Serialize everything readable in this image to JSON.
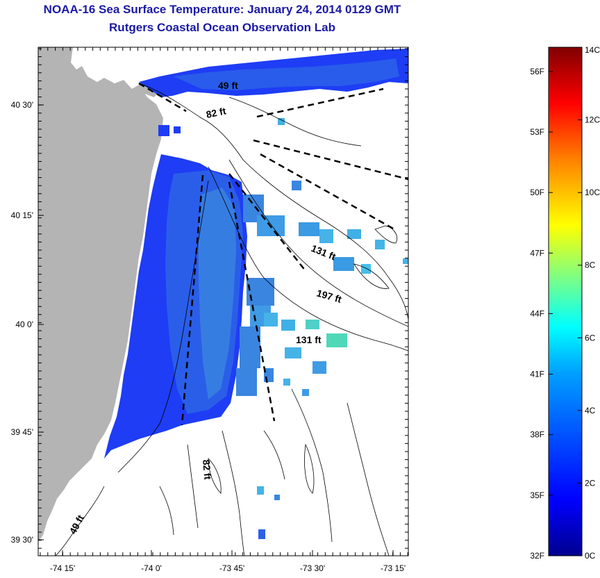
{
  "header": {
    "title": "NOAA-16 Sea Surface Temperature:  January 24, 2014 0129 GMT",
    "subtitle": "Rutgers Coastal Ocean Observation Lab"
  },
  "map": {
    "x_ticks": [
      "-74 15'",
      "-74 0'",
      "-73 45'",
      "-73 30'",
      "-73 15'"
    ],
    "y_ticks": [
      "40 30'",
      "40 15'",
      "40 0'",
      "39 45'",
      "39 30'"
    ],
    "depth_labels": [
      "49 ft",
      "82 ft",
      "131 ft",
      "197 ft",
      "131 ft",
      "82 ft",
      "49 ft"
    ],
    "colors": {
      "land": "#b4b4b4",
      "water_cold": "#1a3cff",
      "water_mid": "#2a6ae6"
    }
  },
  "colorbar": {
    "fahrenheit_labels": [
      "56F",
      "53F",
      "50F",
      "47F",
      "44F",
      "41F",
      "38F",
      "35F",
      "32F"
    ],
    "celsius_labels": [
      "14C",
      "12C",
      "10C",
      "8C",
      "6C",
      "4C",
      "2C",
      "0C"
    ],
    "range_c": [
      0,
      14
    ],
    "colors": [
      "#00008f",
      "#0000ff",
      "#0080ff",
      "#00ffff",
      "#80ff80",
      "#ffff00",
      "#ff8000",
      "#ff0000",
      "#800000"
    ]
  }
}
